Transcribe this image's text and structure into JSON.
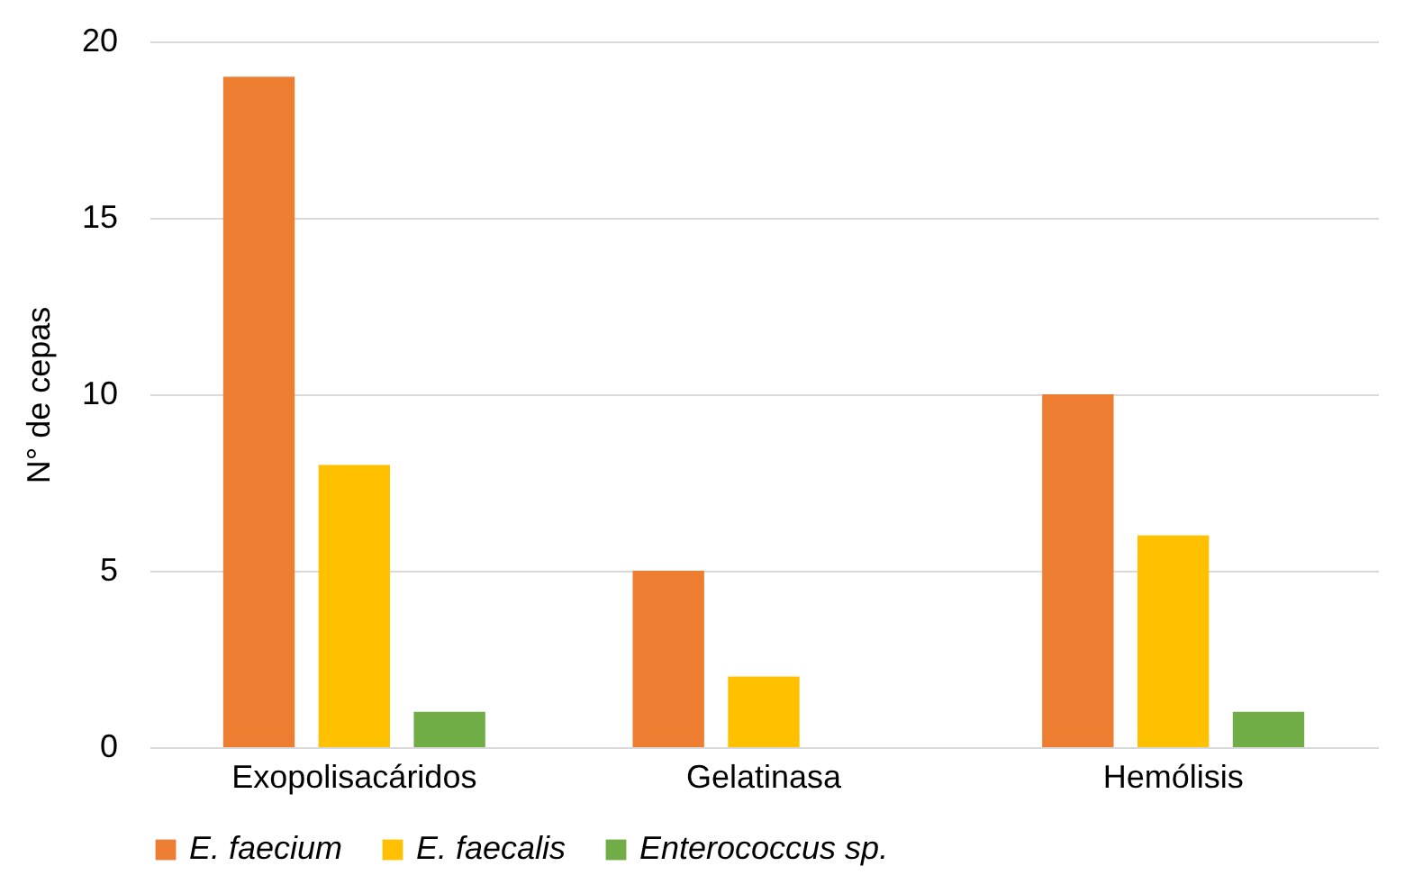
{
  "chart_data": {
    "type": "bar",
    "ylabel": "N° de cepas",
    "categories": [
      "Exopolisacáridos",
      "Gelatinasa",
      "Hemólisis"
    ],
    "series": [
      {
        "name": "E. faecium",
        "color": "#ed7d31",
        "values": [
          19,
          5,
          10
        ]
      },
      {
        "name": "E. faecalis",
        "color": "#ffc000",
        "values": [
          8,
          2,
          6
        ]
      },
      {
        "name": "Enterococcus sp.",
        "color": "#70ad47",
        "values": [
          1,
          0,
          1
        ]
      }
    ],
    "ylim": [
      0,
      20
    ],
    "yticks": [
      0,
      5,
      10,
      15,
      20
    ],
    "grid": "y",
    "legend": "bottom"
  }
}
